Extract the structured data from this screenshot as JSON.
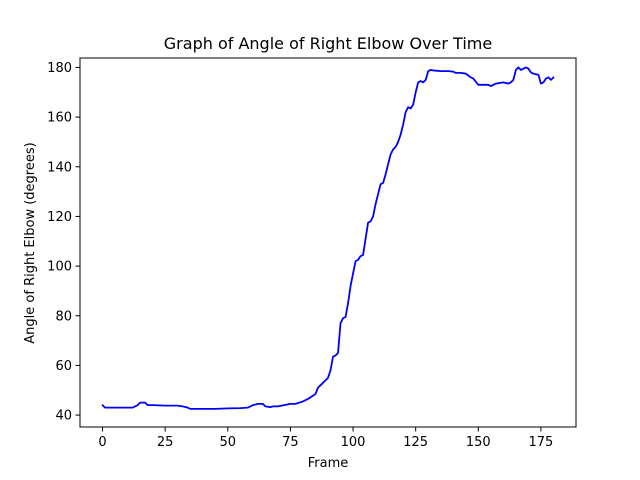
{
  "chart_data": {
    "type": "line",
    "title": "Graph of Angle of Right Elbow Over Time",
    "xlabel": "Frame",
    "ylabel": "Angle of Right Elbow (degrees)",
    "xlim": [
      -9,
      189
    ],
    "ylim": [
      35.2,
      183.8
    ],
    "x_ticks": [
      0,
      25,
      50,
      75,
      100,
      125,
      150,
      175
    ],
    "y_ticks": [
      40,
      60,
      80,
      100,
      120,
      140,
      160,
      180
    ],
    "grid": false,
    "line_color": "#0000ff",
    "series": [
      {
        "x": [
          0,
          1,
          2,
          5,
          8,
          12,
          14,
          15,
          17,
          18,
          20,
          25,
          30,
          32,
          34,
          35,
          40,
          45,
          50,
          55,
          58,
          60,
          62,
          64,
          65,
          67,
          68,
          70,
          75,
          77,
          80,
          82,
          85,
          86,
          88,
          90,
          91,
          92,
          93,
          94,
          95,
          96,
          97,
          98,
          99,
          100,
          101,
          102,
          103,
          104,
          105,
          106,
          107,
          108,
          109,
          110,
          111,
          112,
          113,
          114,
          115,
          116,
          117,
          118,
          119,
          120,
          121,
          122,
          123,
          124,
          125,
          126,
          127,
          128,
          129,
          130,
          131,
          132,
          135,
          138,
          140,
          141,
          143,
          145,
          147,
          148,
          150,
          152,
          154,
          155,
          157,
          160,
          162,
          163,
          164,
          165,
          166,
          167,
          168,
          169,
          170,
          171,
          172,
          174,
          175,
          176,
          177,
          178,
          179,
          180
        ],
        "values": [
          44,
          43,
          43,
          43,
          43,
          43,
          44,
          45,
          45,
          44,
          44,
          43.8,
          43.8,
          43.5,
          43,
          42.5,
          42.5,
          42.5,
          42.7,
          42.8,
          43,
          44,
          44.5,
          44.5,
          43.5,
          43.2,
          43.5,
          43.5,
          44.5,
          44.5,
          45.5,
          46.5,
          48.5,
          51,
          53,
          55,
          58,
          63.5,
          64,
          65,
          77,
          79,
          79.5,
          85,
          92,
          97,
          102,
          102.5,
          104,
          104.5,
          111,
          117.5,
          118,
          120,
          125,
          129,
          133,
          133.5,
          137,
          141,
          145,
          147,
          148,
          150,
          153,
          157,
          162,
          164,
          163.5,
          165,
          170,
          174,
          174.5,
          174,
          175,
          178.5,
          179,
          178.8,
          178.5,
          178.5,
          178.3,
          177.8,
          177.8,
          177.5,
          176,
          175.5,
          173,
          173,
          173,
          172.5,
          173.5,
          174,
          173.5,
          174,
          175,
          179,
          180,
          179,
          179.5,
          180,
          179.5,
          178,
          177.5,
          177,
          173.5,
          174,
          175.5,
          176,
          175,
          176
        ]
      }
    ]
  }
}
